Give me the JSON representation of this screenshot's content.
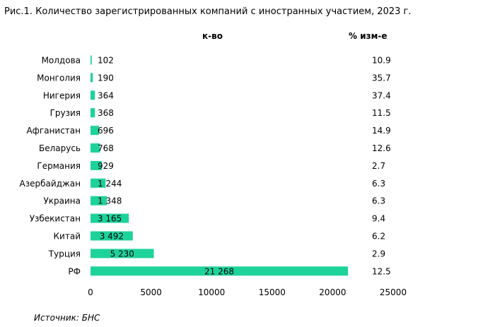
{
  "title": "Рис.1. Количество зарегистрированных компаний с иностранных участием, 2023 г.",
  "source": "Источник: БНС",
  "chart_data": {
    "type": "bar",
    "orientation": "horizontal",
    "title": "Рис.1. Количество зарегистрированных компаний с иностранных участием, 2023 г.",
    "value_header": "к-во",
    "change_header": "% изм-е",
    "categories": [
      "Молдова",
      "Монголия",
      "Нигерия",
      "Грузия",
      "Афганистан",
      "Беларусь",
      "Германия",
      "Азербайджан",
      "Украина",
      "Узбекистан",
      "Китай",
      "Турция",
      "РФ"
    ],
    "values": [
      102,
      190,
      364,
      368,
      696,
      768,
      929,
      1244,
      1348,
      3165,
      3492,
      5230,
      21268
    ],
    "value_labels": [
      "102",
      "190",
      "364",
      "368",
      "696",
      "768",
      "929",
      "1 244",
      "1 348",
      "3 165",
      "3 492",
      "5 230",
      "21 268"
    ],
    "change_pct": [
      "10.9",
      "35.7",
      "37.4",
      "11.5",
      "14.9",
      "12.6",
      "2.7",
      "6.3",
      "6.3",
      "9.4",
      "6.2",
      "2.9",
      "12.5"
    ],
    "xlim": [
      0,
      25000
    ],
    "xticks": [
      0,
      5000,
      10000,
      15000,
      20000,
      25000
    ],
    "grid": false,
    "bar_color": "#1dd39a"
  }
}
